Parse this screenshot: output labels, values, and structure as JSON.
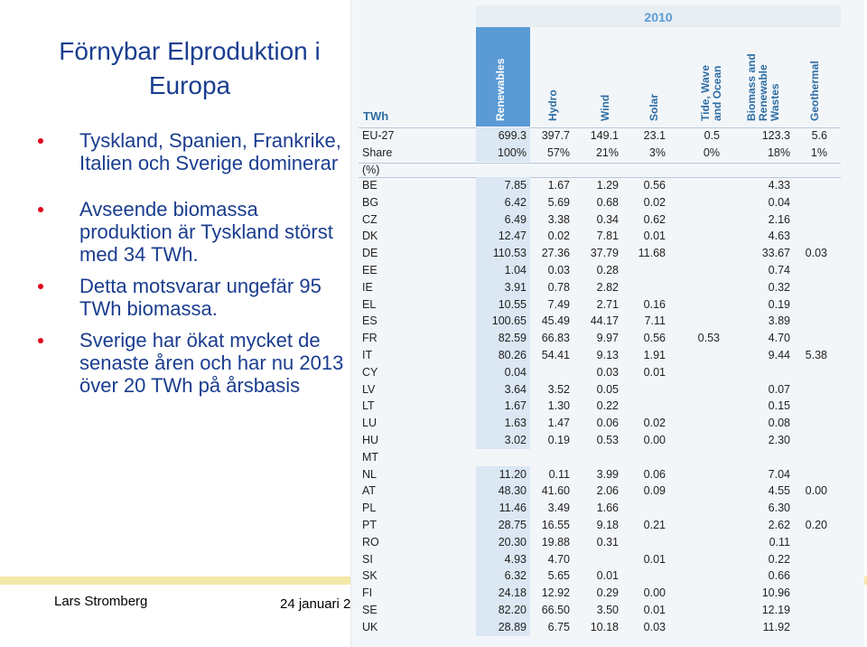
{
  "slide": {
    "title": "Förnybar Elproduktion i Europa",
    "bullets": [
      "Tyskland, Spanien, Frankrike, Italien och Sverige dominerar",
      "Avseende biomassa produktion är Tyskland störst med 34 TWh.",
      "Detta motsvarar ungefär 95 TWh biomassa.",
      "Sverige har ökat mycket de senaste åren och har nu 2013 över 20 TWh på årsbasis"
    ],
    "footer_name": "Lars Stromberg",
    "footer_date": "24 januari 2"
  },
  "colors": {
    "title_text": "#1a3d8f",
    "bullet_dot": "#e3001b",
    "table_header": "#5b9bd5",
    "footer_band": "#f4e9a8"
  },
  "table": {
    "year": "2010",
    "unit": "TWh",
    "columns": [
      "Renewables",
      "Hydro",
      "Wind",
      "Solar",
      "Tide, Wave\nand Ocean",
      "Biomass and\nRenewable\nWastes",
      "Geothermal"
    ],
    "summary_rows": [
      [
        "EU-27",
        "699.3",
        "397.7",
        "149.1",
        "23.1",
        "0.5",
        "123.3",
        "5.6"
      ],
      [
        "Share (%)",
        "100%",
        "57%",
        "21%",
        "3%",
        "0%",
        "18%",
        "1%"
      ]
    ],
    "rows": [
      [
        "BE",
        "7.85",
        "1.67",
        "1.29",
        "0.56",
        "",
        "4.33",
        ""
      ],
      [
        "BG",
        "6.42",
        "5.69",
        "0.68",
        "0.02",
        "",
        "0.04",
        ""
      ],
      [
        "CZ",
        "6.49",
        "3.38",
        "0.34",
        "0.62",
        "",
        "2.16",
        ""
      ],
      [
        "DK",
        "12.47",
        "0.02",
        "7.81",
        "0.01",
        "",
        "4.63",
        ""
      ],
      [
        "DE",
        "110.53",
        "27.36",
        "37.79",
        "11.68",
        "",
        "33.67",
        "0.03"
      ],
      [
        "EE",
        "1.04",
        "0.03",
        "0.28",
        "",
        "",
        "0.74",
        ""
      ],
      [
        "IE",
        "3.91",
        "0.78",
        "2.82",
        "",
        "",
        "0.32",
        ""
      ],
      [
        "EL",
        "10.55",
        "7.49",
        "2.71",
        "0.16",
        "",
        "0.19",
        ""
      ],
      [
        "ES",
        "100.65",
        "45.49",
        "44.17",
        "7.11",
        "",
        "3.89",
        ""
      ],
      [
        "FR",
        "82.59",
        "66.83",
        "9.97",
        "0.56",
        "0.53",
        "4.70",
        ""
      ],
      [
        "IT",
        "80.26",
        "54.41",
        "9.13",
        "1.91",
        "",
        "9.44",
        "5.38"
      ],
      [
        "CY",
        "0.04",
        "",
        "0.03",
        "0.01",
        "",
        "",
        ""
      ],
      [
        "LV",
        "3.64",
        "3.52",
        "0.05",
        "",
        "",
        "0.07",
        ""
      ],
      [
        "LT",
        "1.67",
        "1.30",
        "0.22",
        "",
        "",
        "0.15",
        ""
      ],
      [
        "LU",
        "1.63",
        "1.47",
        "0.06",
        "0.02",
        "",
        "0.08",
        ""
      ],
      [
        "HU",
        "3.02",
        "0.19",
        "0.53",
        "0.00",
        "",
        "2.30",
        ""
      ],
      [
        "MT",
        "",
        "",
        "",
        "",
        "",
        "",
        ""
      ],
      [
        "NL",
        "11.20",
        "0.11",
        "3.99",
        "0.06",
        "",
        "7.04",
        ""
      ],
      [
        "AT",
        "48.30",
        "41.60",
        "2.06",
        "0.09",
        "",
        "4.55",
        "0.00"
      ],
      [
        "PL",
        "11.46",
        "3.49",
        "1.66",
        "",
        "",
        "6.30",
        ""
      ],
      [
        "PT",
        "28.75",
        "16.55",
        "9.18",
        "0.21",
        "",
        "2.62",
        "0.20"
      ],
      [
        "RO",
        "20.30",
        "19.88",
        "0.31",
        "",
        "",
        "0.11",
        ""
      ],
      [
        "SI",
        "4.93",
        "4.70",
        "",
        "0.01",
        "",
        "0.22",
        ""
      ],
      [
        "SK",
        "6.32",
        "5.65",
        "0.01",
        "",
        "",
        "0.66",
        ""
      ],
      [
        "FI",
        "24.18",
        "12.92",
        "0.29",
        "0.00",
        "",
        "10.96",
        ""
      ],
      [
        "SE",
        "82.20",
        "66.50",
        "3.50",
        "0.01",
        "",
        "12.19",
        ""
      ],
      [
        "UK",
        "28.89",
        "6.75",
        "10.18",
        "0.03",
        "",
        "11.92",
        ""
      ]
    ]
  }
}
